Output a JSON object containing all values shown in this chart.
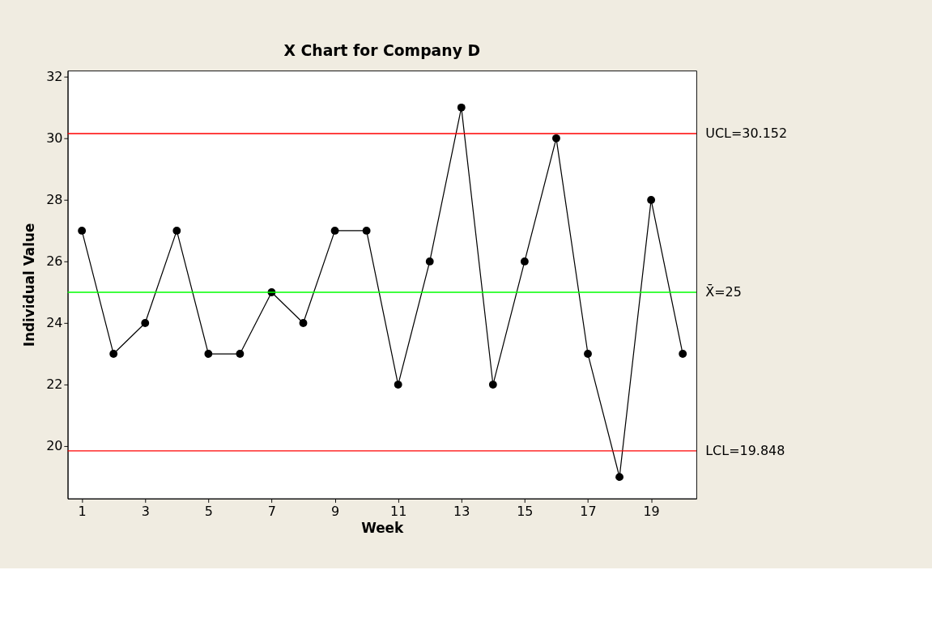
{
  "chart_data": {
    "type": "line",
    "title": "X Chart for Company D",
    "xlabel": "Week",
    "ylabel": "Individual Value",
    "x": [
      1,
      2,
      3,
      4,
      5,
      6,
      7,
      8,
      9,
      10,
      11,
      12,
      13,
      14,
      15,
      16,
      17,
      18,
      19,
      20
    ],
    "series": [
      {
        "color": "#000000",
        "values": [
          27,
          23,
          24,
          27,
          23,
          23,
          25,
          24,
          27,
          27,
          22,
          26,
          31,
          22,
          26,
          30,
          23,
          19,
          28,
          23
        ]
      }
    ],
    "xlim": [
      0.55,
      20.43
    ],
    "xticks": [
      1,
      3,
      5,
      7,
      9,
      11,
      13,
      15,
      17,
      19
    ],
    "ylim": [
      18.3,
      32.2
    ],
    "yticks": [
      20,
      22,
      24,
      26,
      28,
      30,
      32
    ],
    "ref_lines": [
      {
        "axis": "y",
        "value": 30.152,
        "label": "UCL=30.152",
        "color": "#ff0000"
      },
      {
        "axis": "y",
        "value": 25,
        "label": "X̄=25",
        "color": "#00ff00"
      },
      {
        "axis": "y",
        "value": 19.848,
        "label": "LCL=19.848",
        "color": "#ff0000"
      }
    ],
    "marker": "circle",
    "line_style": "solid",
    "grid": false
  }
}
